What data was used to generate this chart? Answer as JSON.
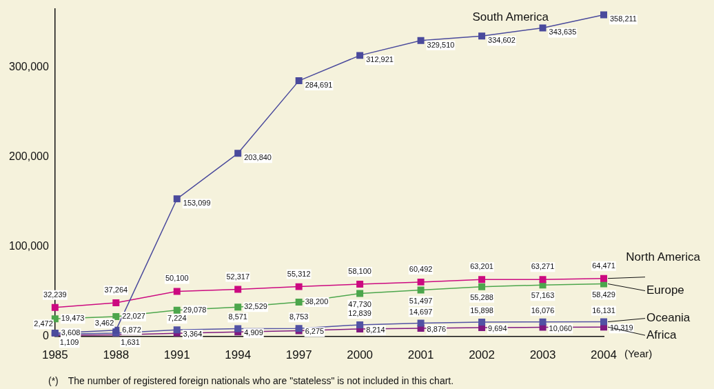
{
  "chart_data": {
    "type": "line",
    "xlabel": "(Year)",
    "categories": [
      "1985",
      "1988",
      "1991",
      "1994",
      "1997",
      "2000",
      "2001",
      "2002",
      "2003",
      "2004"
    ],
    "series": [
      {
        "name": "South America",
        "color": "#4a4a9c",
        "values": [
          3608,
          6872,
          153099,
          203840,
          284691,
          312921,
          329510,
          334602,
          343635,
          358211
        ],
        "value_labels": [
          "3,608",
          "6,872",
          "153,099",
          "203,840",
          "284,691",
          "312,921",
          "329,510",
          "334,602",
          "343,635",
          "358,211"
        ]
      },
      {
        "name": "North America",
        "color": "#cc0a80",
        "values": [
          32239,
          37264,
          50100,
          52317,
          55312,
          58100,
          60492,
          63201,
          63271,
          64471
        ],
        "value_labels": [
          "32,239",
          "37,264",
          "50,100",
          "52,317",
          "55,312",
          "58,100",
          "60,492",
          "63,201",
          "63,271",
          "64,471"
        ]
      },
      {
        "name": "Europe",
        "color": "#4ca64c",
        "values": [
          19473,
          22027,
          29078,
          32529,
          38200,
          47730,
          51497,
          55288,
          57163,
          58429
        ],
        "value_labels": [
          "19,473",
          "22,027",
          "29,078",
          "32,529",
          "38,200",
          "47,730",
          "51,497",
          "55,288",
          "57,163",
          "58,429"
        ]
      },
      {
        "name": "Oceania",
        "color": "#5252a4",
        "values": [
          2472,
          3462,
          7224,
          8571,
          8753,
          12839,
          14697,
          15898,
          16076,
          16131
        ],
        "value_labels": [
          "2,472",
          "3,462",
          "7,224",
          "8,571",
          "8,753",
          "12,839",
          "14,697",
          "15,898",
          "16,076",
          "16,131"
        ]
      },
      {
        "name": "Africa",
        "color": "#801a80",
        "values": [
          1109,
          1631,
          3364,
          4909,
          6275,
          8214,
          8876,
          9694,
          10060,
          10319
        ],
        "value_labels": [
          "1,109",
          "1,631",
          "3,364",
          "4,909",
          "6,275",
          "8,214",
          "8,876",
          "9,694",
          "10,060",
          "10,319"
        ]
      }
    ],
    "ylim": [
      0,
      365000
    ],
    "yticks": [
      {
        "value": 0,
        "label": "0"
      },
      {
        "value": 100000,
        "label": "100,000"
      },
      {
        "value": 200000,
        "label": "200,000"
      },
      {
        "value": 300000,
        "label": "300,000"
      }
    ],
    "grid": false,
    "legend": false,
    "marker": "square",
    "line_style": "solid",
    "annotations": [
      "(*)　The number of registered foreign nationals who are \"stateless\" is not included in this chart."
    ]
  }
}
